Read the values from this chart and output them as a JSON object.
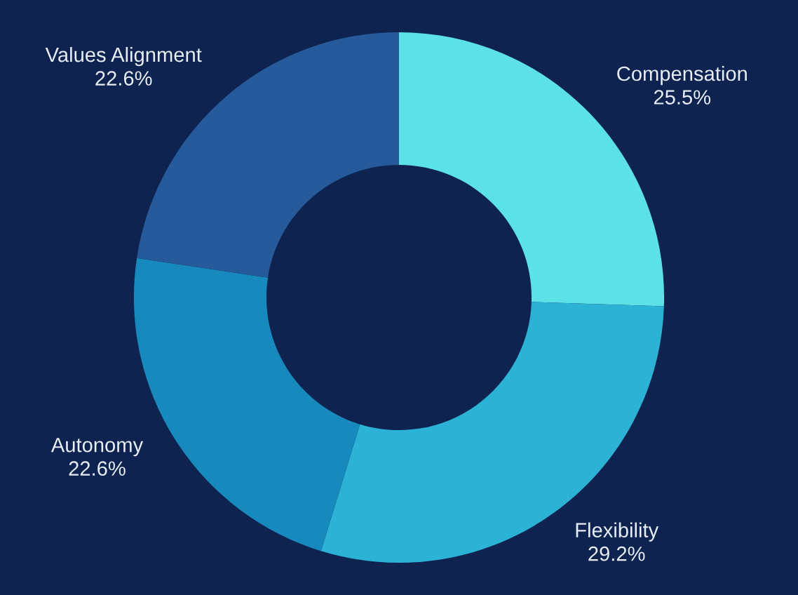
{
  "chart_data": {
    "type": "donut",
    "categories": [
      "Compensation",
      "Flexibility",
      "Autonomy",
      "Values Alignment"
    ],
    "values": [
      25.5,
      29.2,
      22.6,
      22.6
    ],
    "colors": [
      "#5ce1e6",
      "#2bb2d4",
      "#1789bc",
      "#265a9a"
    ],
    "value_labels": [
      "25.5%",
      "29.2%",
      "22.6%",
      "22.6%"
    ]
  }
}
